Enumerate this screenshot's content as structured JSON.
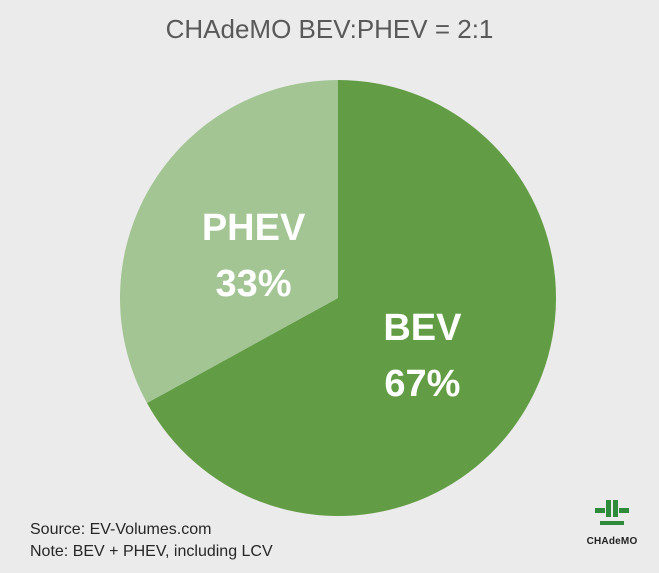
{
  "chart_data": {
    "type": "pie",
    "title": "CHAdeMO BEV:PHEV = 2:1",
    "slices": [
      {
        "name": "BEV",
        "value": 67,
        "label": "67%",
        "color": "#629c44"
      },
      {
        "name": "PHEV",
        "value": 33,
        "label": "33%",
        "color": "#a2c593"
      }
    ],
    "start_angle_deg": 0,
    "direction": "clockwise",
    "legend": "none"
  },
  "notes": {
    "source": "Source: EV-Volumes.com",
    "note": "Note: BEV + PHEV, including LCV"
  },
  "logo": {
    "text": "CHAdeMO",
    "color": "#2e8b3a"
  }
}
